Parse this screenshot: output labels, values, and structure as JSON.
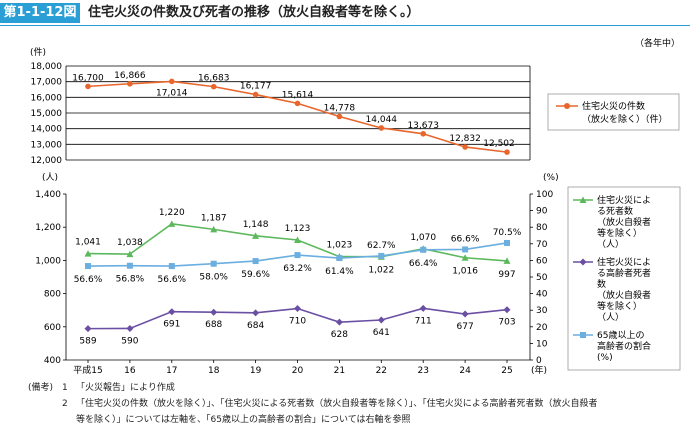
{
  "header": {
    "figure_number": "第1-1-12図",
    "title": "住宅火災の件数及び死者の推移（放火自殺者等を除く。）",
    "period_note": "（各年中）"
  },
  "notes": {
    "label": "(備考)",
    "items": [
      {
        "num": "1",
        "text": "「火災報告」により作成"
      },
      {
        "num": "2",
        "text": "「住宅火災の件数（放火を除く）」、「住宅火災による死者数（放火自殺者等を除く）」、「住宅火災による高齢者死者数（放火自殺者"
      }
    ],
    "continuation": "等を除く）」については左軸を、「65歳以上の高齢者の割合」については右軸を参照"
  },
  "colors": {
    "fires": "#e8662c",
    "deaths": "#5cb85c",
    "elderly_deaths": "#6a4fa3",
    "ratio": "#6baee0",
    "grid": "#000000"
  },
  "chart_data": [
    {
      "type": "line",
      "title": "住宅火災の件数（放火を除く）",
      "ylabel_unit": "(件)",
      "ylim": [
        12000,
        18000
      ],
      "yticks": [
        "18,000",
        "17,000",
        "16,000",
        "15,000",
        "14,000",
        "13,000",
        "12,000"
      ],
      "ytick_values": [
        18000,
        17000,
        16000,
        15000,
        14000,
        13000,
        12000
      ],
      "series": [
        {
          "name": "住宅火災の件数（放火を除く）（件）",
          "legend_lines": [
            "住宅火災の件数",
            "（放火を除く）（件）"
          ],
          "values": [
            16700,
            16866,
            17014,
            16683,
            16177,
            15614,
            14778,
            14044,
            13673,
            12832,
            12502
          ],
          "labels": [
            "16,700",
            "16,866",
            "17,014",
            "16,683",
            "16,177",
            "15,614",
            "14,778",
            "14,044",
            "13,673",
            "12,832",
            "12,502"
          ]
        }
      ]
    },
    {
      "type": "line",
      "ylabel_left_unit": "(人)",
      "ylabel_right_unit": "(%)",
      "xlabel_unit": "(年)",
      "categories": [
        "平成15",
        "16",
        "17",
        "18",
        "19",
        "20",
        "21",
        "22",
        "23",
        "24",
        "25"
      ],
      "ylim_left": [
        400,
        1400
      ],
      "yticks_left": [
        "1,400",
        "1,200",
        "1,000",
        "800",
        "600",
        "400"
      ],
      "yticks_left_values": [
        1400,
        1200,
        1000,
        800,
        600,
        400
      ],
      "ylim_right": [
        0,
        100
      ],
      "yticks_right": [
        "100",
        "90",
        "80",
        "70",
        "60",
        "50",
        "40",
        "30",
        "20",
        "10",
        "0"
      ],
      "yticks_right_values": [
        100,
        90,
        80,
        70,
        60,
        50,
        40,
        30,
        20,
        10,
        0
      ],
      "series": [
        {
          "name": "住宅火災による死者数（放火自殺者等を除く）（人）",
          "legend_lines": [
            "住宅火災によ",
            "る死者数",
            "（放火自殺者",
            "等を除く）",
            "（人）"
          ],
          "axis": "left",
          "values": [
            1041,
            1038,
            1220,
            1187,
            1148,
            1123,
            1023,
            1022,
            1070,
            1016,
            997
          ],
          "labels": [
            "1,041",
            "1,038",
            "1,220",
            "1,187",
            "1,148",
            "1,123",
            "1,023",
            "1,022",
            "1,070",
            "1,016",
            "997"
          ]
        },
        {
          "name": "住宅火災による高齢者死者数（放火自殺者等を除く）（人）",
          "legend_lines": [
            "住宅火災によ",
            "る高齢者死者",
            "数",
            "（放火自殺者",
            "等を除く）",
            "（人）"
          ],
          "axis": "left",
          "values": [
            589,
            590,
            691,
            688,
            684,
            710,
            628,
            641,
            711,
            677,
            703
          ],
          "labels": [
            "589",
            "590",
            "691",
            "688",
            "684",
            "710",
            "628",
            "641",
            "711",
            "677",
            "703"
          ]
        },
        {
          "name": "65歳以上の高齢者の割合（%）",
          "legend_lines": [
            "65歳以上の",
            "高齢者の割合",
            "(%)"
          ],
          "axis": "right",
          "values": [
            56.6,
            56.8,
            56.6,
            58.0,
            59.6,
            63.2,
            61.4,
            62.7,
            66.4,
            66.6,
            70.5
          ],
          "labels": [
            "56.6%",
            "56.8%",
            "56.6%",
            "58.0%",
            "59.6%",
            "63.2%",
            "61.4%",
            "62.7%",
            "66.4%",
            "66.6%",
            "70.5%"
          ]
        }
      ]
    }
  ]
}
